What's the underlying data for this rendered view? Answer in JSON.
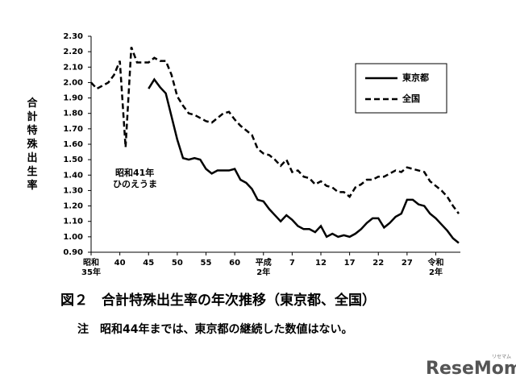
{
  "chart_data": {
    "type": "line",
    "y_label": "合計特殊出生率",
    "x": [
      1960,
      1961,
      1962,
      1963,
      1964,
      1965,
      1966,
      1967,
      1968,
      1969,
      1970,
      1971,
      1972,
      1973,
      1974,
      1975,
      1976,
      1977,
      1978,
      1979,
      1980,
      1981,
      1982,
      1983,
      1984,
      1985,
      1986,
      1987,
      1988,
      1989,
      1990,
      1991,
      1992,
      1993,
      1994,
      1995,
      1996,
      1997,
      1998,
      1999,
      2000,
      2001,
      2002,
      2003,
      2004,
      2005,
      2006,
      2007,
      2008,
      2009,
      2010,
      2011,
      2012,
      2013,
      2014,
      2015,
      2016,
      2017,
      2018,
      2019,
      2020,
      2021,
      2022,
      2023,
      2024
    ],
    "series": [
      {
        "name": "東京都",
        "color": "#000000",
        "dash": "solid",
        "values": [
          null,
          null,
          null,
          null,
          null,
          null,
          null,
          null,
          null,
          null,
          1.96,
          2.02,
          1.97,
          1.93,
          1.78,
          1.63,
          1.51,
          1.5,
          1.51,
          1.5,
          1.44,
          1.41,
          1.43,
          1.43,
          1.43,
          1.44,
          1.37,
          1.35,
          1.31,
          1.24,
          1.23,
          1.18,
          1.14,
          1.1,
          1.14,
          1.11,
          1.07,
          1.05,
          1.05,
          1.03,
          1.07,
          1.0,
          1.02,
          1.0,
          1.01,
          1.0,
          1.02,
          1.05,
          1.09,
          1.12,
          1.12,
          1.06,
          1.09,
          1.13,
          1.15,
          1.24,
          1.24,
          1.21,
          1.2,
          1.15,
          1.12,
          1.08,
          1.04,
          0.99,
          0.96
        ]
      },
      {
        "name": "全国",
        "color": "#000000",
        "dash": "dashed",
        "values": [
          2.0,
          1.96,
          1.98,
          2.0,
          2.05,
          2.14,
          1.58,
          2.23,
          2.13,
          2.13,
          2.13,
          2.16,
          2.14,
          2.14,
          2.05,
          1.91,
          1.85,
          1.8,
          1.79,
          1.77,
          1.75,
          1.74,
          1.77,
          1.8,
          1.81,
          1.76,
          1.72,
          1.69,
          1.66,
          1.57,
          1.54,
          1.53,
          1.5,
          1.46,
          1.5,
          1.42,
          1.43,
          1.39,
          1.38,
          1.34,
          1.36,
          1.33,
          1.32,
          1.29,
          1.29,
          1.26,
          1.32,
          1.34,
          1.37,
          1.37,
          1.39,
          1.39,
          1.41,
          1.43,
          1.42,
          1.45,
          1.44,
          1.43,
          1.42,
          1.36,
          1.33,
          1.3,
          1.26,
          1.2,
          1.15
        ]
      }
    ],
    "xlim": [
      1960,
      2024
    ],
    "ylim": [
      0.9,
      2.3
    ],
    "xticks": [
      {
        "value": 1960,
        "label": "昭和35年"
      },
      {
        "value": 1965,
        "label": "40"
      },
      {
        "value": 1970,
        "label": "45"
      },
      {
        "value": 1975,
        "label": "50"
      },
      {
        "value": 1980,
        "label": "55"
      },
      {
        "value": 1985,
        "label": "60"
      },
      {
        "value": 1990,
        "label": "平成2年"
      },
      {
        "value": 1995,
        "label": "7"
      },
      {
        "value": 2000,
        "label": "12"
      },
      {
        "value": 2005,
        "label": "17"
      },
      {
        "value": 2010,
        "label": "22"
      },
      {
        "value": 2015,
        "label": "27"
      },
      {
        "value": 2020,
        "label": "令和2年"
      }
    ],
    "yticks": [
      {
        "value": 0.9,
        "label": "0.90"
      },
      {
        "value": 1.0,
        "label": "1.00"
      },
      {
        "value": 1.1,
        "label": "1.10"
      },
      {
        "value": 1.2,
        "label": "1.20"
      },
      {
        "value": 1.3,
        "label": "1.30"
      },
      {
        "value": 1.4,
        "label": "1.40"
      },
      {
        "value": 1.5,
        "label": "1.50"
      },
      {
        "value": 1.6,
        "label": "1.60"
      },
      {
        "value": 1.7,
        "label": "1.70"
      },
      {
        "value": 1.8,
        "label": "1.80"
      },
      {
        "value": 1.9,
        "label": "1.90"
      },
      {
        "value": 2.0,
        "label": "2.00"
      },
      {
        "value": 2.1,
        "label": "2.10"
      },
      {
        "value": 2.2,
        "label": "2.20"
      },
      {
        "value": 2.3,
        "label": "2.30"
      }
    ],
    "annotation": [
      "昭和41年",
      "ひのえうま"
    ],
    "caption": "図２　合計特殊出生率の年次推移（東京都、全国）",
    "note": "注　昭和44年までは、東京都の継続した数値はない。"
  },
  "brand": {
    "name": "ReseMom",
    "kana": "リセマム"
  }
}
